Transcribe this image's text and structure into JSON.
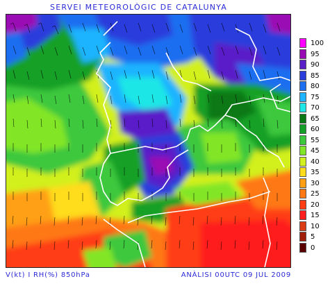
{
  "header": {
    "title": "SERVEI METEOROLÒGIC DE CATALUNYA"
  },
  "footer": {
    "variables": "V(kt) I RH(%) 850hPa",
    "analysis": "ANÀLISI 00UTC 09 JUL 2009"
  },
  "legend": {
    "items": [
      {
        "label": "100",
        "color": "#ff00ff"
      },
      {
        "label": "95",
        "color": "#9a0ab4"
      },
      {
        "label": "90",
        "color": "#5a1ec8"
      },
      {
        "label": "85",
        "color": "#2a3cdc"
      },
      {
        "label": "80",
        "color": "#1e6ef0"
      },
      {
        "label": "75",
        "color": "#1eb4ff"
      },
      {
        "label": "70",
        "color": "#1ee6e6"
      },
      {
        "label": "65",
        "color": "#0a7814"
      },
      {
        "label": "60",
        "color": "#14a028"
      },
      {
        "label": "55",
        "color": "#3cc83c"
      },
      {
        "label": "45",
        "color": "#82e628"
      },
      {
        "label": "40",
        "color": "#d2f01e"
      },
      {
        "label": "35",
        "color": "#ffdc1e"
      },
      {
        "label": "30",
        "color": "#ffa014"
      },
      {
        "label": "25",
        "color": "#ff7814"
      },
      {
        "label": "20",
        "color": "#ff3c14"
      },
      {
        "label": "15",
        "color": "#ff1e1e"
      },
      {
        "label": "10",
        "color": "#dc3c14"
      },
      {
        "label": "5",
        "color": "#a01e0a"
      },
      {
        "label": "0",
        "color": "#5a0000"
      }
    ]
  }
}
